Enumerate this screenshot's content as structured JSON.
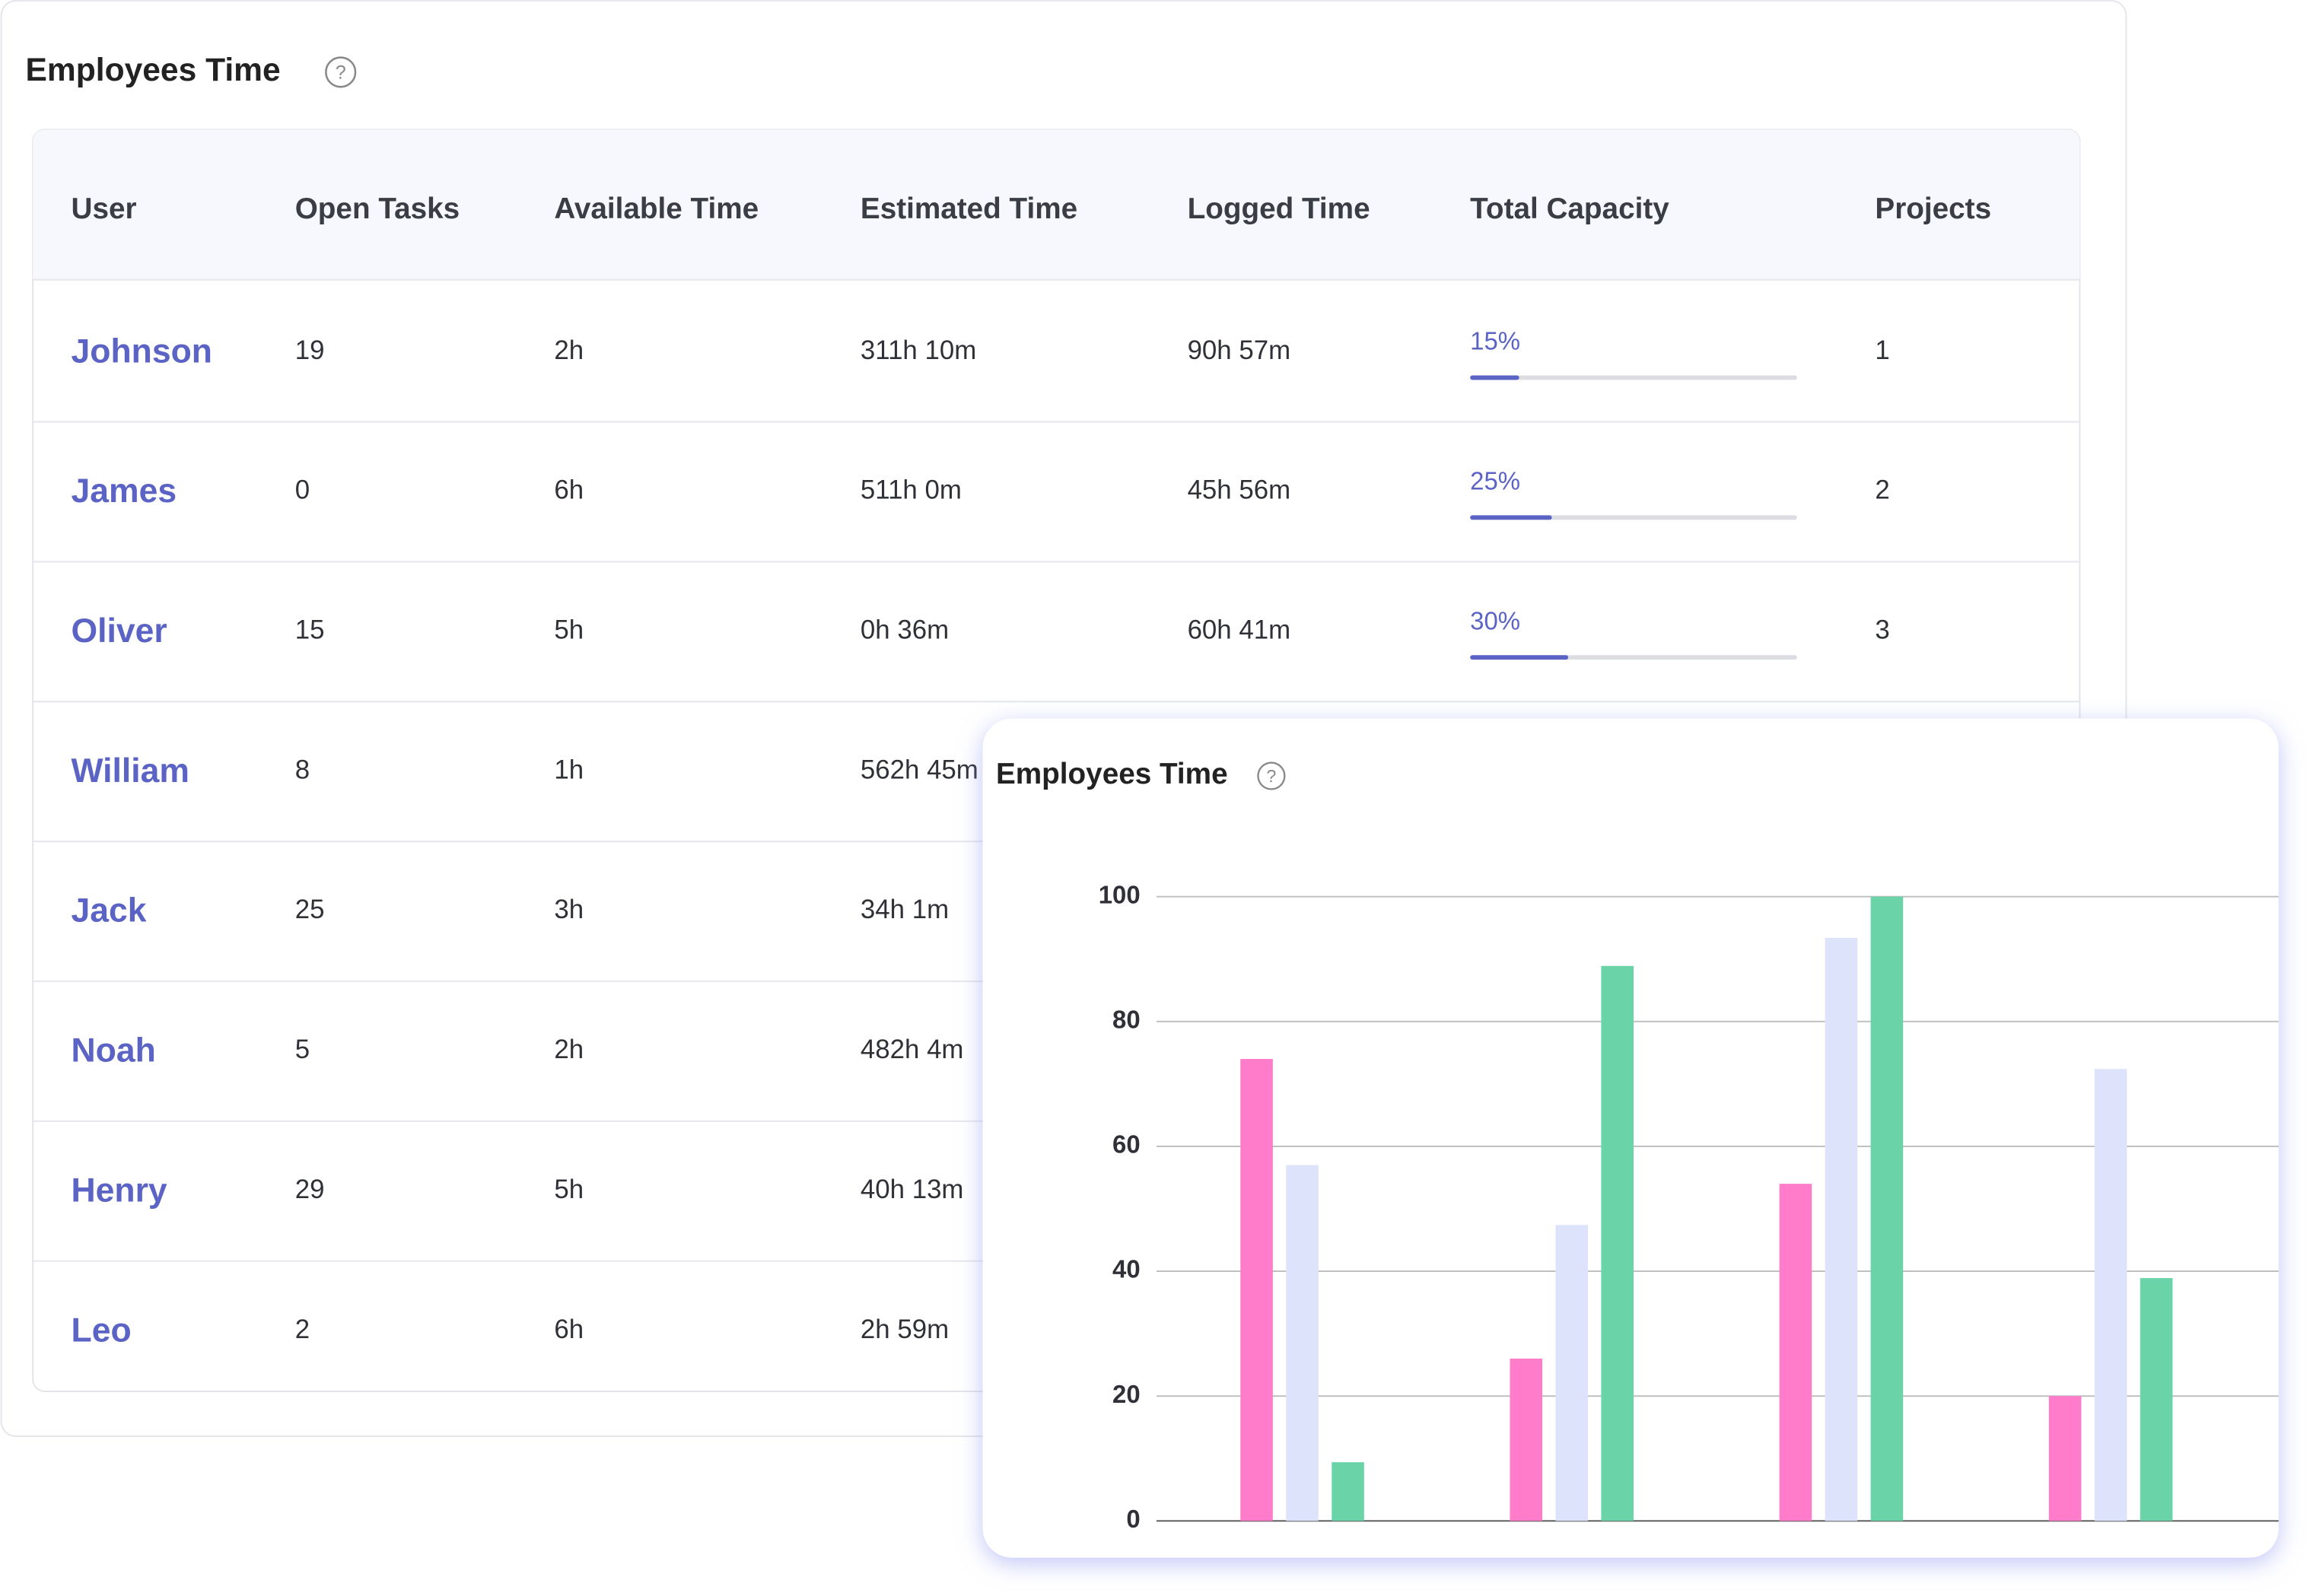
{
  "header": {
    "title": "Employees Time"
  },
  "table": {
    "columns": [
      "User",
      "Open Tasks",
      "Available Time",
      "Estimated Time",
      "Logged Time",
      "Total Capacity",
      "Projects"
    ],
    "rows": [
      {
        "user": "Johnson",
        "open_tasks": "19",
        "available": "2h",
        "estimated": "311h 10m",
        "logged": "90h 57m",
        "capacity": {
          "value": 15,
          "label": "15%"
        },
        "projects": "1"
      },
      {
        "user": "James",
        "open_tasks": "0",
        "available": "6h",
        "estimated": "511h 0m",
        "logged": "45h 56m",
        "capacity": {
          "value": 25,
          "label": "25%"
        },
        "projects": "2"
      },
      {
        "user": "Oliver",
        "open_tasks": "15",
        "available": "5h",
        "estimated": "0h 36m",
        "logged": "60h 41m",
        "capacity": {
          "value": 30,
          "label": "30%"
        },
        "projects": "3"
      },
      {
        "user": "William",
        "open_tasks": "8",
        "available": "1h",
        "estimated": "562h 45m"
      },
      {
        "user": "Jack",
        "open_tasks": "25",
        "available": "3h",
        "estimated": "34h 1m"
      },
      {
        "user": "Noah",
        "open_tasks": "5",
        "available": "2h",
        "estimated": "482h 4m"
      },
      {
        "user": "Henry",
        "open_tasks": "29",
        "available": "5h",
        "estimated": "40h 13m"
      },
      {
        "user": "Leo",
        "open_tasks": "2",
        "available": "6h",
        "estimated": "2h 59m"
      }
    ]
  },
  "chart_data": {
    "type": "bar",
    "title": "Employees Time",
    "categories": [
      null,
      null,
      null,
      null
    ],
    "series": [
      {
        "color": "#ff7ccb",
        "values": [
          74,
          26,
          54,
          20
        ]
      },
      {
        "color": "#dde3fb",
        "values": [
          57,
          47.4,
          93.4,
          72.4
        ]
      },
      {
        "color": "#6ad3a8",
        "values": [
          9.4,
          88.9,
          100,
          38.9
        ]
      }
    ],
    "ylim": [
      0,
      100
    ],
    "yticks": [
      0,
      20,
      40,
      60,
      80,
      100
    ],
    "grid": true
  }
}
